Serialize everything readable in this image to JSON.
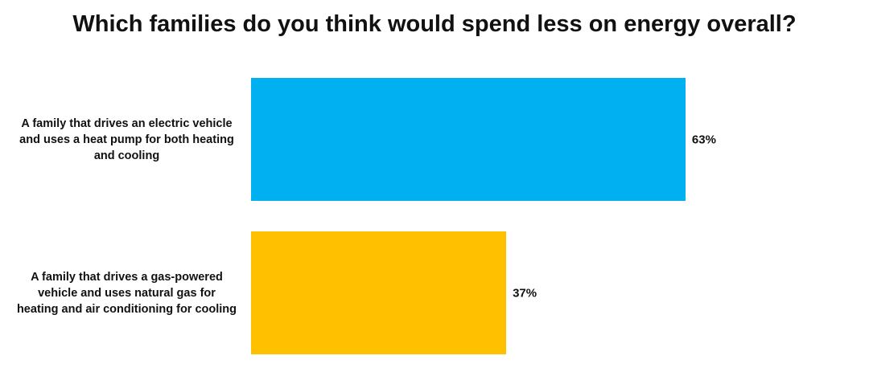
{
  "chart_data": {
    "type": "bar",
    "orientation": "horizontal",
    "title": "Which families do you think would spend less on energy overall?",
    "categories": [
      "A family that drives an electric vehicle and uses a heat pump for both heating and cooling",
      "A family that drives a gas-powered vehicle and uses natural gas for heating and air conditioning for cooling"
    ],
    "values": [
      63,
      37
    ],
    "value_labels": [
      "63%",
      "37%"
    ],
    "colors": [
      "#00b0f0",
      "#ffc000"
    ]
  }
}
